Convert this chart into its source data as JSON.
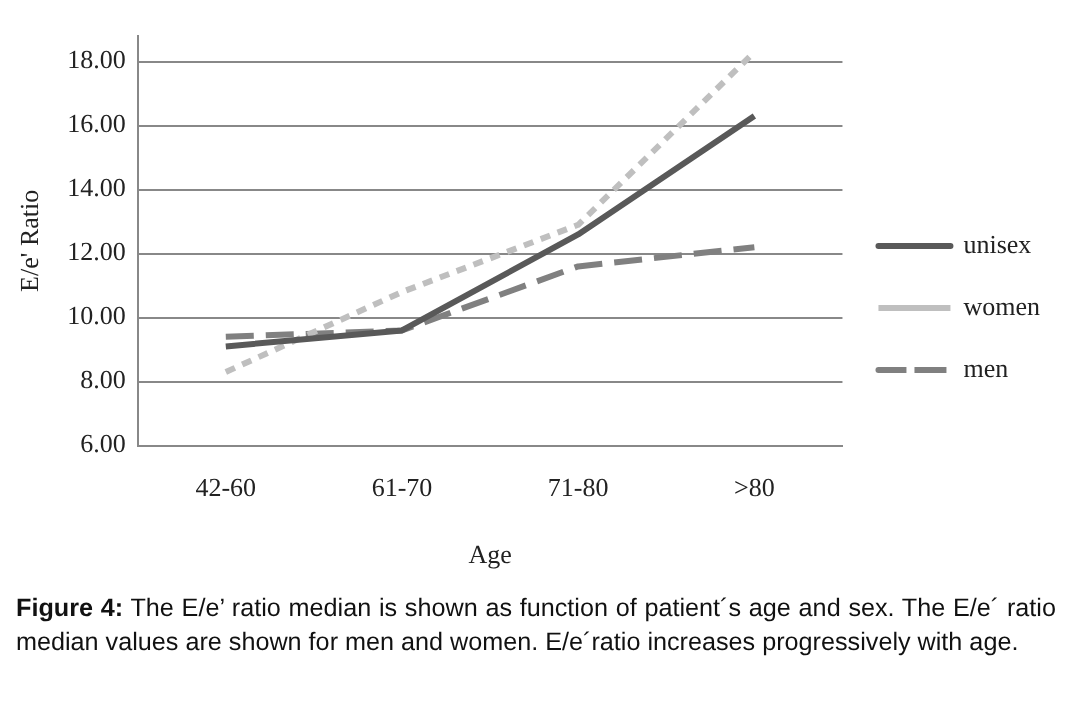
{
  "chart_data": {
    "type": "line",
    "xlabel": "Age",
    "ylabel": "E/e' Ratio",
    "categories": [
      "42-60",
      "61-70",
      "71-80",
      ">80"
    ],
    "series": [
      {
        "name": "unisex",
        "color": "#595959",
        "line_style": "solid",
        "values": [
          9.1,
          9.6,
          12.6,
          16.3
        ]
      },
      {
        "name": "women",
        "color": "#bfbfbf",
        "line_style": "dotted",
        "values": [
          8.3,
          10.8,
          12.9,
          18.3
        ]
      },
      {
        "name": "men",
        "color": "#808080",
        "line_style": "dashed",
        "values": [
          9.4,
          9.6,
          11.6,
          12.2
        ]
      }
    ],
    "ylim": [
      6,
      18.8
    ],
    "yticks": [
      {
        "value": 6,
        "label": "6.00"
      },
      {
        "value": 8,
        "label": "8.00"
      },
      {
        "value": 10,
        "label": "10.00"
      },
      {
        "value": 12,
        "label": "12.00"
      },
      {
        "value": 14,
        "label": "14.00"
      },
      {
        "value": 16,
        "label": "16.00"
      },
      {
        "value": 18,
        "label": "18.00"
      }
    ],
    "grid": "y",
    "legend": "right",
    "marker": "none",
    "annotations": [
      "Figure 4:",
      "The E/e’ ratio median is shown as function of patient´s age and sex. The E/e´ ratio median values are shown for men and women. E/e´ratio increases progressively with age."
    ]
  }
}
